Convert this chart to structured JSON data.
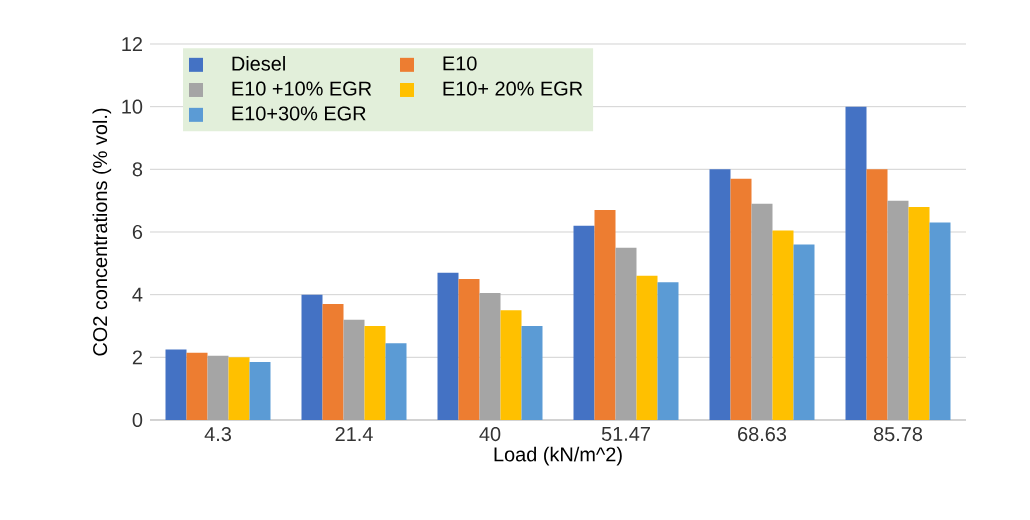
{
  "chart_data": {
    "type": "bar",
    "xlabel": "Load (kN/m^2)",
    "ylabel": "CO2 concentrations (% vol.)",
    "categories": [
      "4.3",
      "21.4",
      "40",
      "51.47",
      "68.63",
      "85.78"
    ],
    "series": [
      {
        "name": "Diesel",
        "color": "#4472c4",
        "values": [
          2.25,
          4.0,
          4.7,
          6.2,
          8.0,
          10.0
        ]
      },
      {
        "name": "E10",
        "color": "#ed7d31",
        "values": [
          2.15,
          3.7,
          4.5,
          6.7,
          7.7,
          8.0
        ]
      },
      {
        "name": "E10 +10% EGR",
        "color": "#a5a5a5",
        "values": [
          2.05,
          3.2,
          4.05,
          5.5,
          6.9,
          7.0
        ]
      },
      {
        "name": "E10+ 20% EGR",
        "color": "#ffc000",
        "values": [
          2.0,
          3.0,
          3.5,
          4.6,
          6.05,
          6.8
        ]
      },
      {
        "name": "E10+30% EGR",
        "color": "#5b9bd5",
        "values": [
          1.85,
          2.45,
          3.0,
          4.4,
          5.6,
          6.3
        ]
      }
    ],
    "ylim": [
      0,
      12
    ],
    "yticks": [
      0,
      2,
      4,
      6,
      8,
      10,
      12
    ],
    "grid": "y",
    "legend": "top left"
  }
}
